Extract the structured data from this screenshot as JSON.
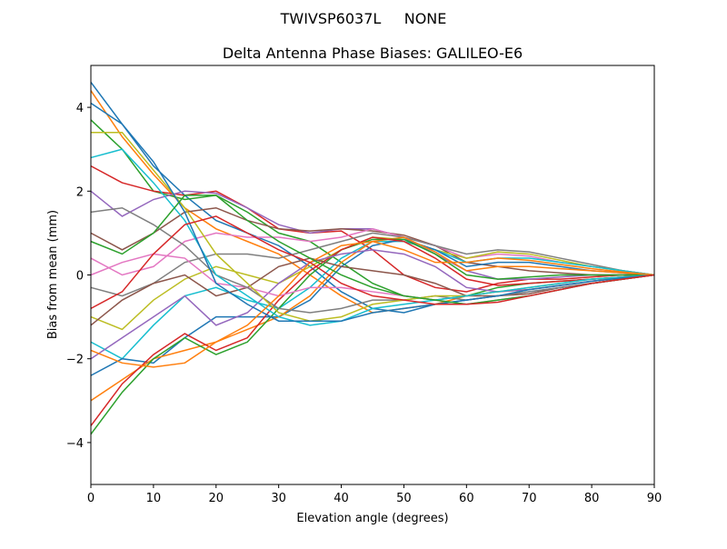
{
  "chart_data": {
    "type": "line",
    "suptitle": "TWIVSP6037L     NONE",
    "title": "Delta Antenna Phase Biases: GALILEO-E6",
    "xlabel": "Elevation angle (degrees)",
    "ylabel": "Bias from mean (mm)",
    "xlim": [
      0,
      90
    ],
    "ylim": [
      -5,
      5
    ],
    "xticks": [
      0,
      10,
      20,
      30,
      40,
      50,
      60,
      70,
      80,
      90
    ],
    "yticks": [
      -4,
      -2,
      0,
      2,
      4
    ],
    "ytick_labels": [
      "−4",
      "−2",
      "0",
      "2",
      "4"
    ],
    "grid": false,
    "colors": [
      "#1f77b4",
      "#ff7f0e",
      "#2ca02c",
      "#d62728",
      "#9467bd",
      "#8c564b",
      "#e377c2",
      "#7f7f7f",
      "#bcbd22",
      "#17becf"
    ],
    "x": [
      0,
      5,
      10,
      15,
      20,
      25,
      30,
      35,
      40,
      45,
      50,
      55,
      60,
      65,
      70,
      75,
      80,
      85,
      90
    ],
    "series": [
      {
        "values": [
          4.6,
          3.6,
          2.6,
          1.9,
          1.3,
          1.0,
          0.7,
          0.2,
          -0.4,
          -0.8,
          -0.9,
          -0.7,
          -0.6,
          -0.5,
          -0.4,
          -0.3,
          -0.2,
          -0.1,
          0
        ]
      },
      {
        "values": [
          4.4,
          3.3,
          2.4,
          1.6,
          1.1,
          0.8,
          0.5,
          0.0,
          -0.5,
          -0.9,
          -0.8,
          -0.7,
          -0.5,
          -0.4,
          -0.35,
          -0.25,
          -0.15,
          -0.07,
          0
        ]
      },
      {
        "values": [
          3.7,
          3.0,
          2.0,
          1.8,
          1.9,
          1.5,
          1.0,
          0.8,
          0.3,
          -0.2,
          -0.5,
          -0.6,
          -0.5,
          -0.3,
          -0.2,
          -0.15,
          -0.1,
          -0.05,
          0
        ]
      },
      {
        "values": [
          2.6,
          2.2,
          2.0,
          1.9,
          2.0,
          1.6,
          1.1,
          1.0,
          1.05,
          0.6,
          0.0,
          -0.3,
          -0.4,
          -0.2,
          -0.1,
          -0.1,
          -0.05,
          0,
          0
        ]
      },
      {
        "values": [
          2.0,
          1.4,
          1.8,
          2.0,
          1.95,
          1.6,
          1.2,
          1.0,
          1.1,
          1.1,
          0.9,
          0.5,
          0.1,
          -0.1,
          -0.1,
          -0.05,
          0,
          0,
          0
        ]
      },
      {
        "values": [
          1.0,
          0.6,
          1.0,
          1.5,
          1.6,
          1.3,
          1.1,
          1.05,
          1.1,
          1.05,
          0.95,
          0.7,
          0.3,
          0.2,
          0.1,
          0.05,
          0,
          0,
          0
        ]
      },
      {
        "values": [
          0.4,
          0.0,
          0.2,
          0.8,
          1.0,
          0.9,
          0.9,
          0.8,
          0.9,
          1.1,
          0.9,
          0.7,
          0.4,
          0.5,
          0.45,
          0.3,
          0.2,
          0.1,
          0
        ]
      },
      {
        "values": [
          -0.3,
          -0.5,
          -0.2,
          0.3,
          0.5,
          0.5,
          0.4,
          0.6,
          0.8,
          1.0,
          0.9,
          0.7,
          0.5,
          0.6,
          0.55,
          0.4,
          0.25,
          0.1,
          0
        ]
      },
      {
        "values": [
          -1.0,
          -1.3,
          -0.6,
          -0.1,
          0.2,
          0.0,
          -0.2,
          0.2,
          0.6,
          0.9,
          0.85,
          0.6,
          0.4,
          0.55,
          0.5,
          0.35,
          0.2,
          0.1,
          0
        ]
      },
      {
        "values": [
          -1.6,
          -2.0,
          -1.2,
          -0.5,
          -0.3,
          -0.6,
          -0.8,
          -0.3,
          0.4,
          0.8,
          0.8,
          0.6,
          0.3,
          0.4,
          0.4,
          0.3,
          0.2,
          0.1,
          0
        ]
      },
      {
        "values": [
          -2.4,
          -2.0,
          -2.1,
          -1.5,
          -1.0,
          -1.0,
          -1.0,
          -0.6,
          0.2,
          0.7,
          0.85,
          0.6,
          0.2,
          0.3,
          0.3,
          0.2,
          0.1,
          0.05,
          0
        ]
      },
      {
        "values": [
          -3.0,
          -2.5,
          -2.0,
          -1.8,
          -1.6,
          -1.3,
          -1.0,
          -0.5,
          0.3,
          0.8,
          0.9,
          0.55,
          0.1,
          0.2,
          0.2,
          0.15,
          0.1,
          0.05,
          0
        ]
      },
      {
        "values": [
          -3.8,
          -2.8,
          -2.0,
          -1.5,
          -1.9,
          -1.6,
          -0.8,
          0.0,
          0.6,
          0.85,
          0.85,
          0.5,
          0.0,
          -0.1,
          -0.05,
          0,
          0,
          0,
          0
        ]
      },
      {
        "values": [
          -3.6,
          -2.6,
          -1.9,
          -1.4,
          -1.8,
          -1.5,
          -0.6,
          0.1,
          0.6,
          0.9,
          0.8,
          0.4,
          -0.1,
          -0.25,
          -0.2,
          -0.15,
          -0.1,
          -0.05,
          0
        ]
      },
      {
        "values": [
          -2.0,
          -1.5,
          -1.0,
          -0.5,
          -1.2,
          -0.9,
          -0.2,
          0.3,
          0.5,
          0.6,
          0.5,
          0.2,
          -0.3,
          -0.4,
          -0.35,
          -0.25,
          -0.15,
          -0.07,
          0
        ]
      },
      {
        "values": [
          -1.2,
          -0.6,
          -0.2,
          0.0,
          -0.5,
          -0.3,
          0.2,
          0.4,
          0.2,
          0.1,
          0.0,
          -0.2,
          -0.5,
          -0.5,
          -0.45,
          -0.3,
          -0.2,
          -0.1,
          0
        ]
      },
      {
        "values": [
          0.0,
          0.3,
          0.5,
          0.4,
          -0.2,
          -0.3,
          -0.5,
          -0.3,
          -0.3,
          -0.4,
          -0.5,
          -0.6,
          -0.7,
          -0.6,
          -0.5,
          -0.35,
          -0.2,
          -0.1,
          0
        ]
      },
      {
        "values": [
          1.5,
          1.6,
          1.2,
          0.7,
          0.0,
          -0.3,
          -0.8,
          -0.9,
          -0.8,
          -0.6,
          -0.6,
          -0.5,
          -0.6,
          -0.5,
          -0.4,
          -0.3,
          -0.2,
          -0.1,
          0
        ]
      },
      {
        "values": [
          3.4,
          3.4,
          2.5,
          1.6,
          0.5,
          -0.2,
          -0.9,
          -1.1,
          -1.0,
          -0.7,
          -0.6,
          -0.5,
          -0.5,
          -0.4,
          -0.3,
          -0.2,
          -0.1,
          -0.05,
          0
        ]
      },
      {
        "values": [
          2.8,
          3.0,
          2.2,
          1.3,
          0.0,
          -0.5,
          -1.0,
          -1.2,
          -1.1,
          -0.8,
          -0.7,
          -0.6,
          -0.5,
          -0.4,
          -0.3,
          -0.2,
          -0.1,
          -0.05,
          0
        ]
      },
      {
        "values": [
          4.1,
          3.6,
          2.7,
          1.5,
          -0.2,
          -0.7,
          -1.1,
          -1.1,
          -1.1,
          -0.9,
          -0.8,
          -0.7,
          -0.6,
          -0.5,
          -0.35,
          -0.25,
          -0.15,
          -0.07,
          0
        ]
      },
      {
        "values": [
          -1.8,
          -2.1,
          -2.2,
          -2.1,
          -1.6,
          -1.2,
          -0.5,
          0.3,
          0.7,
          0.8,
          0.6,
          0.3,
          0.3,
          0.4,
          0.35,
          0.25,
          0.15,
          0.07,
          0
        ]
      },
      {
        "values": [
          0.8,
          0.5,
          1.0,
          1.9,
          1.9,
          1.3,
          0.8,
          0.4,
          0.0,
          -0.3,
          -0.5,
          -0.6,
          -0.7,
          -0.6,
          -0.5,
          -0.35,
          -0.2,
          -0.1,
          0
        ]
      },
      {
        "values": [
          -0.8,
          -0.4,
          0.5,
          1.2,
          1.4,
          1.0,
          0.6,
          0.3,
          -0.2,
          -0.5,
          -0.6,
          -0.7,
          -0.7,
          -0.65,
          -0.5,
          -0.35,
          -0.2,
          -0.1,
          0
        ]
      }
    ]
  }
}
